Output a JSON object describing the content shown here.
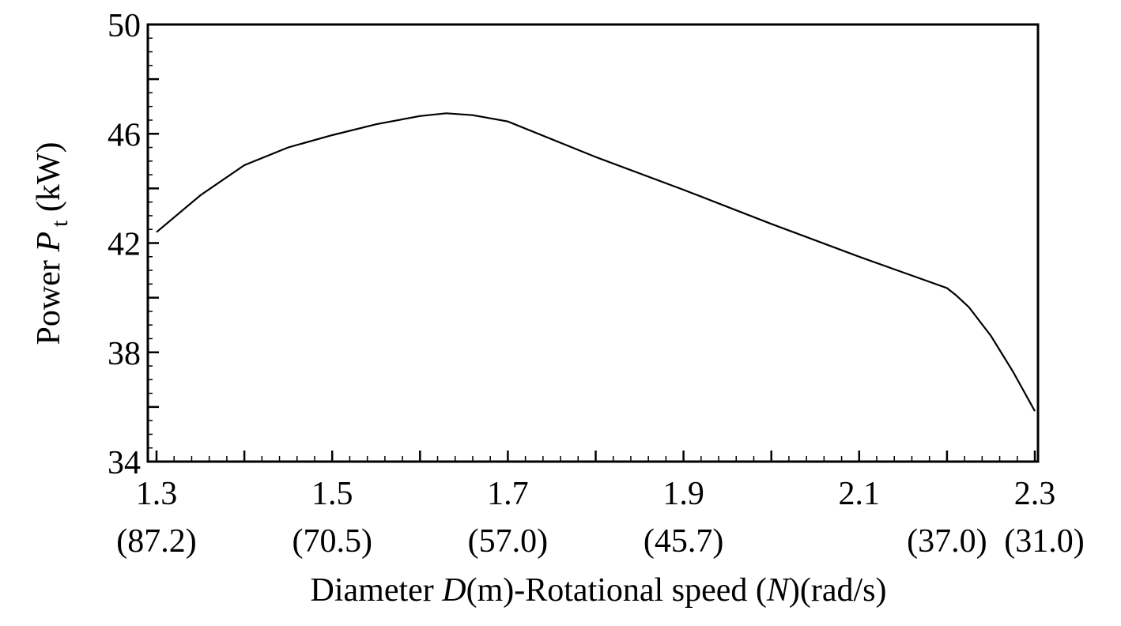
{
  "chart_data": {
    "type": "line",
    "title": "",
    "xlabel": {
      "prefix": "Diameter ",
      "var1": "D",
      "mid": "(m)-Rotational speed (",
      "var2": "N",
      "suffix": ")(rad/s)"
    },
    "ylabel": {
      "prefix": "Power ",
      "var": "P",
      "sub": "t",
      "suffix": " (kW)"
    },
    "xlim": [
      1.3,
      2.3
    ],
    "ylim": [
      34,
      50
    ],
    "x_ticks": [
      "1.3",
      "1.5",
      "1.7",
      "1.9",
      "2.1",
      "2.3"
    ],
    "x_tick_values": [
      1.3,
      1.5,
      1.7,
      1.9,
      2.1,
      2.3
    ],
    "x_secondary_labels": [
      {
        "x": 1.3,
        "label": "(87.2)"
      },
      {
        "x": 1.5,
        "label": "(70.5)"
      },
      {
        "x": 1.7,
        "label": "(57.0)"
      },
      {
        "x": 1.9,
        "label": "(45.7)"
      },
      {
        "x": 2.2,
        "label": "(37.0)"
      },
      {
        "x": 2.3,
        "label": "(31.0)"
      }
    ],
    "y_ticks": [
      "34",
      "38",
      "42",
      "46",
      "50"
    ],
    "y_tick_values": [
      34,
      38,
      42,
      46,
      50
    ],
    "grid": false,
    "series": [
      {
        "name": "Power",
        "color": "#000000",
        "x": [
          1.3,
          1.35,
          1.4,
          1.45,
          1.5,
          1.55,
          1.6,
          1.63,
          1.66,
          1.7,
          1.8,
          1.9,
          2.0,
          2.1,
          2.2,
          2.21,
          2.225,
          2.25,
          2.275,
          2.3
        ],
        "y": [
          42.4,
          43.75,
          44.85,
          45.5,
          45.95,
          46.35,
          46.65,
          46.75,
          46.68,
          46.45,
          45.15,
          43.95,
          42.7,
          41.5,
          40.35,
          40.1,
          39.65,
          38.6,
          37.3,
          35.85
        ]
      }
    ]
  }
}
